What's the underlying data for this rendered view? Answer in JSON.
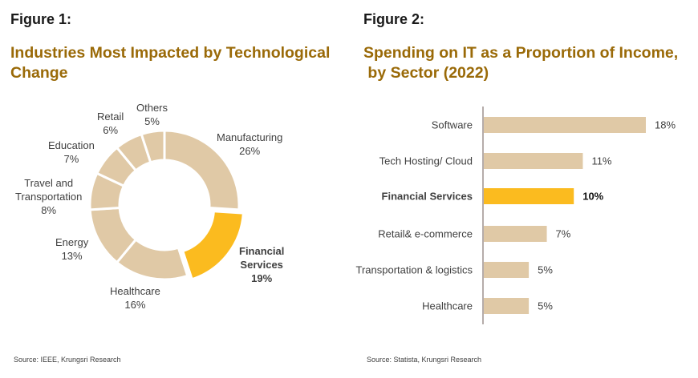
{
  "figure1": {
    "label": "Figure 1:",
    "title_line1": "Industries Most Impacted by Technological",
    "title_line2": "Change",
    "source": "Source: IEEE, Krungsri Research"
  },
  "figure2": {
    "label": "Figure 2:",
    "title_line1": "Spending on IT as a Proportion of Income,",
    "title_line2": " by Sector (2022)",
    "source": "Source: Statista, Krungsri Research"
  },
  "colors": {
    "base": "#e0c9a6",
    "highlight": "#fbbb1f",
    "title": "#9a6a08"
  },
  "chart_data": [
    {
      "type": "pie",
      "donut": true,
      "title": "Industries Most Impacted by Technological Change",
      "slices": [
        {
          "name": "Manufacturing",
          "value": 26,
          "label": "26%",
          "highlight": false
        },
        {
          "name": "Financial Services",
          "name_line1": "Financial",
          "name_line2": "Services",
          "value": 19,
          "label": "19%",
          "highlight": true
        },
        {
          "name": "Healthcare",
          "value": 16,
          "label": "16%",
          "highlight": false
        },
        {
          "name": "Energy",
          "value": 13,
          "label": "13%",
          "highlight": false
        },
        {
          "name": "Travel and Transportation",
          "name_line1": "Travel and",
          "name_line2": "Transportation",
          "value": 8,
          "label": "8%",
          "highlight": false
        },
        {
          "name": "Education",
          "value": 7,
          "label": "7%",
          "highlight": false
        },
        {
          "name": "Retail",
          "value": 6,
          "label": "6%",
          "highlight": false
        },
        {
          "name": "Others",
          "value": 5,
          "label": "5%",
          "highlight": false
        }
      ]
    },
    {
      "type": "bar",
      "orientation": "horizontal",
      "title": "Spending on IT as a Proportion of Income, by Sector (2022)",
      "categories": [
        "Software",
        "Tech Hosting/ Cloud",
        "Financial Services",
        "Retail& e-commerce",
        "Transportation & logistics",
        "Healthcare"
      ],
      "values": [
        18,
        11,
        10,
        7,
        5,
        5
      ],
      "labels": [
        "18%",
        "11%",
        "10%",
        "7%",
        "5%",
        "5%"
      ],
      "highlight_index": 2,
      "xlim": [
        0,
        18
      ]
    }
  ]
}
